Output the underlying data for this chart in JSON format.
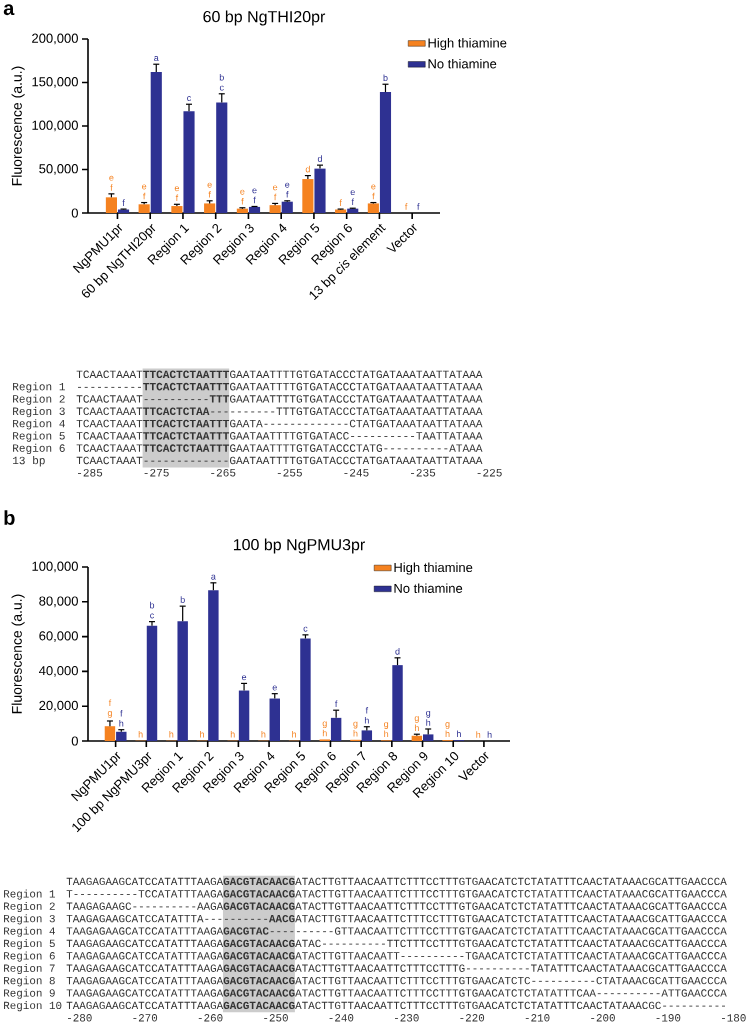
{
  "chart_data": [
    {
      "type": "bar",
      "title": "60 bp NgTHI20pr",
      "ylabel": "Fluorescence (a.u.)",
      "categories": [
        "NgPMU1pr",
        "60 bp NgTHI20pr",
        "Region 1",
        "Region 2",
        "Region 3",
        "Region 4",
        "Region 5",
        "Region 6",
        "13 bp *cis* element",
        "Vector"
      ],
      "series": [
        {
          "name": "High thiamine",
          "color": "#f58220",
          "values": [
            18000,
            10000,
            8000,
            11000,
            5000,
            9000,
            39000,
            4000,
            11000,
            0
          ],
          "errors": [
            4000,
            2000,
            2000,
            3000,
            1000,
            2000,
            4000,
            500,
            1000,
            null
          ],
          "value_labels": [
            "e f",
            "e f",
            "e f",
            "e f",
            "e f",
            "e f",
            "d",
            "f",
            "e f",
            "f"
          ]
        },
        {
          "name": "No thiamine",
          "color": "#2e3192",
          "values": [
            4000,
            162000,
            117000,
            127000,
            7000,
            13000,
            51000,
            5000,
            139000,
            0
          ],
          "errors": [
            500,
            9000,
            8000,
            10000,
            500,
            1000,
            4000,
            500,
            9000,
            null
          ],
          "value_labels": [
            "f",
            "a",
            "c",
            "b c",
            "e f",
            "e f",
            "d",
            "e f",
            "b",
            "f"
          ]
        }
      ],
      "ylim": [
        0,
        200000
      ],
      "yticks": [
        0,
        {
          "value": 50000,
          "label": "50,000"
        },
        {
          "value": 100000,
          "label": "100,000"
        },
        {
          "value": 150000,
          "label": "150,000"
        },
        {
          "value": 200000,
          "label": "200,000"
        }
      ],
      "legend": "top right",
      "annotations": [
        "a",
        "TCAACTAAAT**TTCACTCTAATTT**GAATAATTTTGTGATACCCTATGATAAATAATTATAAA",
        "Region 1",
        "----------**TTCACTCTAATTT**GAATAATTTTGTGATACCCTATGATAAATAATTATAAA",
        "Region 2",
        "TCAACTAAAT----------**TTT**GAATAATTTTGTGATACCCTATGATAAATAATTATAAA",
        "Region 3",
        "TCAACTAAAT**TTCACTCTAA**----------TTTGTGATACCCTATGATAAATAATTATAAA",
        "Region 4",
        "TCAACTAAAT**TTCACTCTAATTT**GAATA-------------CTATGATAAATAATTATAAA",
        "Region 5",
        "TCAACTAAAT**TTCACTCTAATTT**GAATAATTTTGTGATACC----------TAATTATAAA",
        "Region 6",
        "TCAACTAAAT**TTCACTCTAATTT**GAATAATTTTGTGATACCCTATG----------ATAAA",
        "13 bp",
        "TCAACTAAAT-------------GAATAATTTTGTGATACCCTATGATAAATAATTATAAA",
        "-285",
        "-275",
        "-265",
        "-255",
        "-245",
        "-235",
        "-225"
      ]
    },
    {
      "type": "bar",
      "title": "100 bp NgPMU3pr",
      "ylabel": "Fluorescence (a.u.)",
      "categories": [
        "NgPMU1pr",
        "100 bp NgPMU3pr",
        "Region 1",
        "Region 2",
        "Region 3",
        "Region 4",
        "Region 5",
        "Region 6",
        "Region 7",
        "Region 8",
        "Region 9",
        "Region 10",
        "Vector"
      ],
      "series": [
        {
          "name": "High thiamine",
          "color": "#f58220",
          "values": [
            8500,
            200,
            200,
            200,
            200,
            200,
            200,
            900,
            700,
            400,
            3000,
            500,
            0
          ],
          "errors": [
            3000,
            null,
            null,
            null,
            null,
            null,
            null,
            null,
            null,
            null,
            900,
            null,
            null
          ],
          "value_labels": [
            "f g",
            "h",
            "h",
            "h",
            "h",
            "h",
            "h",
            "g h",
            "g h",
            "g h",
            "g h",
            "g h",
            "h"
          ]
        },
        {
          "name": "No thiamine",
          "color": "#2e3192",
          "values": [
            5300,
            66300,
            68800,
            86700,
            29000,
            24400,
            58900,
            13300,
            6100,
            43600,
            3800,
            500,
            0
          ],
          "errors": [
            1200,
            2300,
            8700,
            4200,
            4100,
            2800,
            2100,
            4400,
            2100,
            4200,
            3100,
            null,
            null
          ],
          "value_labels": [
            "f h",
            "b c",
            "b",
            "a",
            "e",
            "e",
            "c",
            "f",
            "f h",
            "d",
            "g h",
            "h",
            "h"
          ]
        }
      ],
      "ylim": [
        0,
        100000
      ],
      "yticks": [
        0,
        {
          "value": 20000,
          "label": "20,000"
        },
        {
          "value": 40000,
          "label": "40,000"
        },
        {
          "value": 60000,
          "label": "60,000"
        },
        {
          "value": 80000,
          "label": "80,000"
        },
        {
          "value": 100000,
          "label": "100,000"
        }
      ],
      "legend": "top right",
      "annotations": [
        "b",
        "TAAGAGAAGCATCCATATTTAAGA**GACGTACAACG**ATACTTGTTAACAATTCTTTCCTTTGTGAACATCTCTATATTTCAACTATAAACGCATTGAACCCA",
        "Region 1",
        "T----------TCCATATTTAAGA**GACGTACAACG**ATACTTGTTAACAATTCTTTCCTTTGTGAACATCTCTATATTTCAACTATAAACGCATTGAACCCA",
        "Region 2",
        "TAAGAGAAGC----------AAGA**GACGTACAACG**ATACTTGTTAACAATTCTTTCCTTTGTGAACATCTCTATATTTCAACTATAAACGCATTGAACCCA",
        "Region 3",
        "TAAGAGAAGCATCCATATTTA----------**AACG**ATACTTGTTAACAATTCTTTCCTTTGTGAACATCTCTATATTTCAACTATAAACGCATTGAACCCA",
        "Region 4",
        "TAAGAGAAGCATCCATATTTAAGA**GACGTAC**----------GTTAACAATTCTTTCCTTTGTGAACATCTCTATATTTCAACTATAAACGCATTGAACCCA",
        "Region 5",
        "TAAGAGAAGCATCCATATTTAAGA**GACGTACAACG**ATAC----------TTCTTTCCTTTGTGAACATCTCTATATTTCAACTATAAACGCATTGAACCCA",
        "Region 6",
        "TAAGAGAAGCATCCATATTTAAGA**GACGTACAACG**ATACTTGTTAACAATT----------TGAACATCTCTATATTTCAACTATAAACGCATTGAACCCA",
        "Region 7",
        "TAAGAGAAGCATCCATATTTAAGA**GACGTACAACG**ATACTTGTTAACAATTCTTTCCTTTG----------TATATTTCAACTATAAACGCATTGAACCCA",
        "Region 8",
        "TAAGAGAAGCATCCATATTTAAGA**GACGTACAACG**ATACTTGTTAACAATTCTTTCCTTTGTGAACATCTC----------CTATAAACGCATTGAACCCA",
        "Region 9",
        "TAAGAGAAGCATCCATATTTAAGA**GACGTACAACG**ATACTTGTTAACAATTCTTTCCTTTGTGAACATCTCTATATTTCAA----------ATTGAACCCA",
        "Region 10",
        "TAAGAGAAGCATCCATATTTAAGA**GACGTACAACG**ATACTTGTTAACAATTCTTTCCTTTGTGAACATCTCTATATTTCAACTATAAACGC----------",
        "-280",
        "-270",
        "-260",
        "-250",
        "-240",
        "-230",
        "-220",
        "-210",
        "-200",
        "-190",
        "-180"
      ]
    }
  ]
}
